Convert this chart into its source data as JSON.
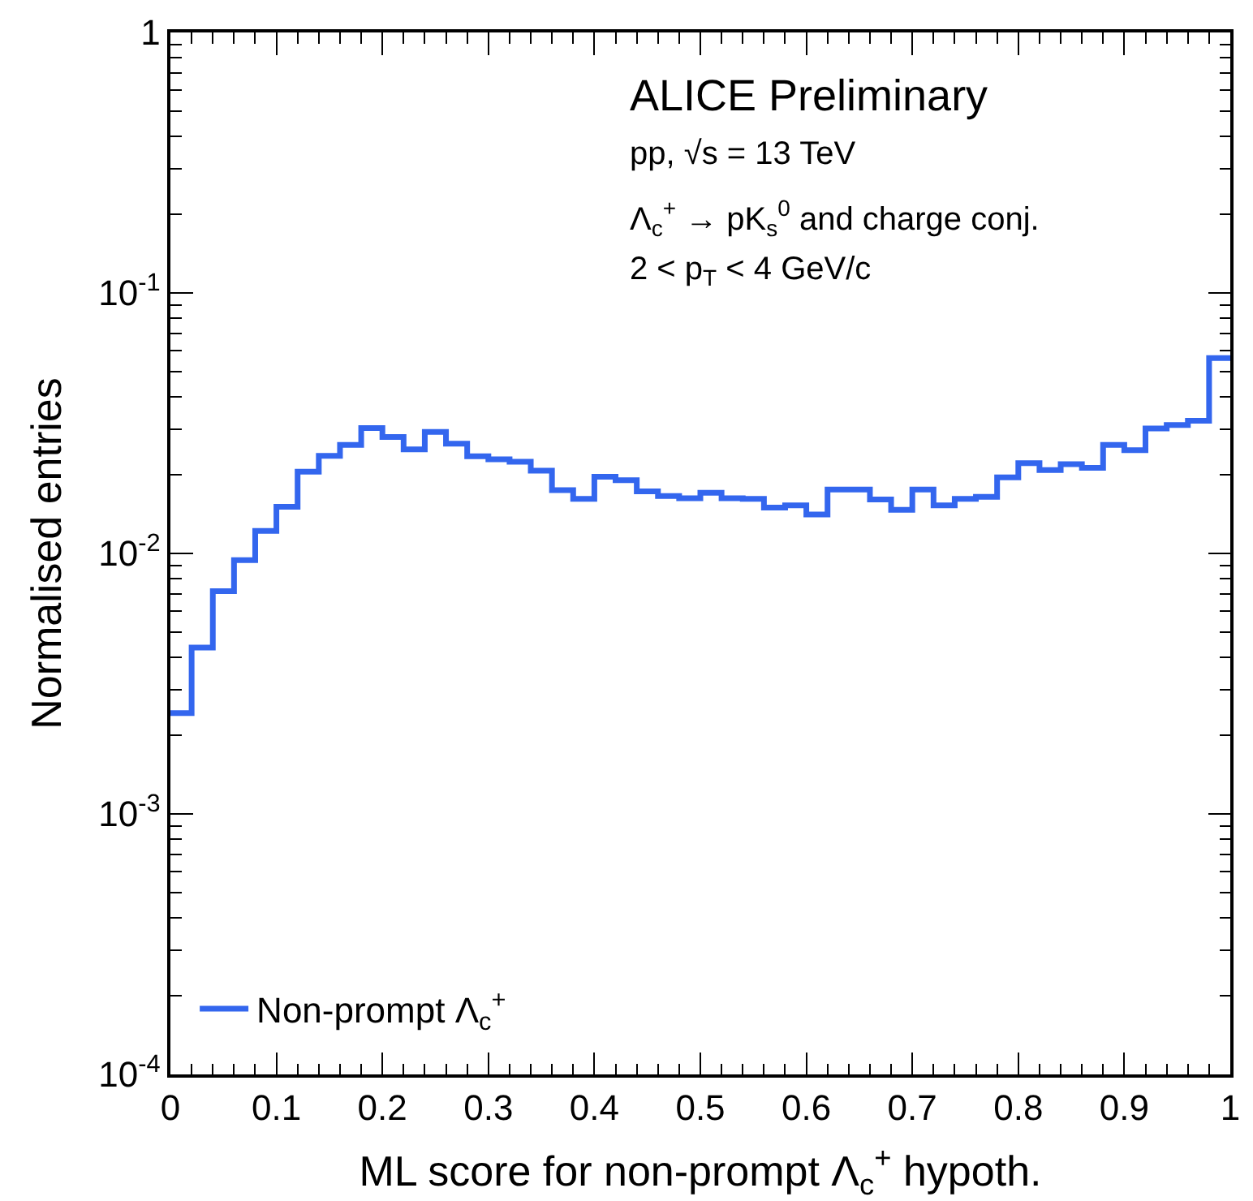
{
  "chart_data": {
    "type": "histogram",
    "xlabel": "ML score for non-prompt Λ$_{c}$$^{+}$ hypoth.",
    "ylabel": "Normalised entries",
    "annotations": [
      "ALICE Preliminary",
      "pp, √s = 13 TeV",
      "Λ$_{c}$$^{+}$ → pK$_{s}$$^{0}$ and charge conj.",
      "2 < p$_{T}$ < 4 GeV/c"
    ],
    "bins": [
      0,
      0.02,
      0.04,
      0.06,
      0.08,
      0.1,
      0.12,
      0.14,
      0.16,
      0.18,
      0.2,
      0.22,
      0.24,
      0.26,
      0.28,
      0.3,
      0.32,
      0.34,
      0.36,
      0.38,
      0.4,
      0.42,
      0.44,
      0.46,
      0.48,
      0.5,
      0.52,
      0.54,
      0.56,
      0.58,
      0.6,
      0.62,
      0.64,
      0.66,
      0.68,
      0.7,
      0.72,
      0.74,
      0.76,
      0.78,
      0.8,
      0.82,
      0.84,
      0.86,
      0.88,
      0.9,
      0.92,
      0.94,
      0.96,
      0.98,
      1
    ],
    "series": [
      {
        "name": "Non-prompt Λ$_{c}$$^{+}$",
        "color": "#3366ee",
        "values": [
          0.00244,
          0.00435,
          0.00717,
          0.00942,
          0.0122,
          0.0151,
          0.0206,
          0.0237,
          0.0261,
          0.0303,
          0.028,
          0.0251,
          0.0293,
          0.0264,
          0.0236,
          0.023,
          0.0225,
          0.0208,
          0.0175,
          0.0162,
          0.0197,
          0.0191,
          0.0173,
          0.0166,
          0.0163,
          0.0171,
          0.0163,
          0.0162,
          0.015,
          0.0153,
          0.0141,
          0.0176,
          0.0176,
          0.0161,
          0.0147,
          0.0176,
          0.0153,
          0.0162,
          0.0165,
          0.0196,
          0.0222,
          0.0209,
          0.022,
          0.0213,
          0.0261,
          0.0249,
          0.0302,
          0.0311,
          0.0323,
          0.0562
        ]
      }
    ],
    "xlim": [
      0,
      1
    ],
    "xticks": [
      0,
      0.1,
      0.2,
      0.3,
      0.4,
      0.5,
      0.6,
      0.7,
      0.8,
      0.9,
      1
    ],
    "ylim": [
      0.0001,
      1
    ],
    "log": "y",
    "yticks": [
      {
        "value": 0.0001,
        "label": "10$^{-4}$"
      },
      {
        "value": 0.001,
        "label": "10$^{-3}$"
      },
      {
        "value": 0.01,
        "label": "10$^{-2}$"
      },
      {
        "value": 0.1,
        "label": "10$^{-1}$"
      },
      1
    ],
    "legend": "bottom left",
    "line_style": "solid"
  }
}
